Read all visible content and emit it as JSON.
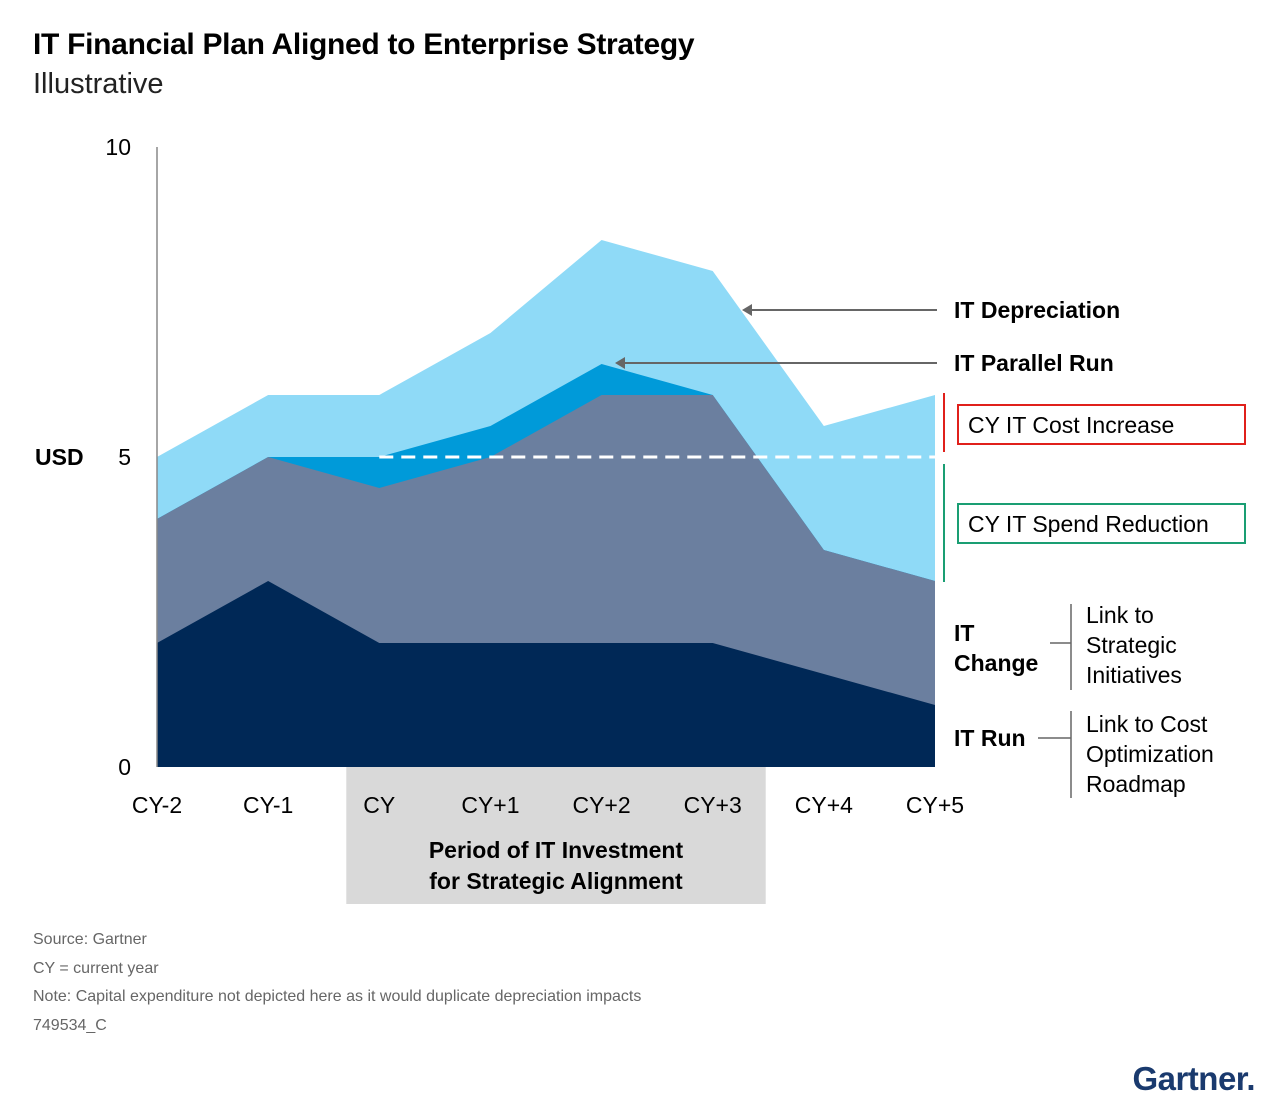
{
  "header": {
    "title": "IT Financial Plan Aligned to Enterprise Strategy",
    "subtitle": "Illustrative"
  },
  "chart_data": {
    "type": "area",
    "stacked": false,
    "categories": [
      "CY-2",
      "CY-1",
      "CY",
      "CY+1",
      "CY+2",
      "CY+3",
      "CY+4",
      "CY+5"
    ],
    "ylabel": "USD",
    "ylim": [
      0,
      10
    ],
    "yticks": [
      "0",
      "5",
      "10"
    ],
    "series": [
      {
        "name": "IT Depreciation",
        "values": [
          5,
          6,
          6,
          7,
          8.5,
          8,
          5.5,
          6
        ],
        "color": "#8fdaf7"
      },
      {
        "name": "IT Parallel Run",
        "values": [
          4,
          5,
          5,
          5.5,
          6.5,
          6,
          3.5,
          3
        ],
        "color": "#009ad9"
      },
      {
        "name": "IT Change",
        "values": [
          4,
          5,
          4.5,
          5,
          6,
          6,
          3.5,
          3
        ],
        "color": "#6b7f9f"
      },
      {
        "name": "IT Run",
        "values": [
          2,
          3,
          2,
          2,
          2,
          2,
          1.5,
          1
        ],
        "color": "#002856"
      }
    ],
    "reference_line": {
      "value": 5,
      "from_category": "CY",
      "to_category": "CY+5",
      "style": "dashed",
      "color": "#ffffff"
    },
    "highlight_period": {
      "from_category": "CY",
      "to_category": "CY+3",
      "label_line1": "Period of IT Investment",
      "label_line2": "for Strategic Alignment",
      "color": "#d9d9d9"
    },
    "annotations": {
      "depreciation": "IT Depreciation",
      "parallel_run": "IT Parallel Run",
      "cost_increase": "CY IT Cost Increase",
      "spend_reduction": "CY IT Spend Reduction",
      "change_line1": "IT",
      "change_line2": "Change",
      "change_link": [
        "Link to",
        "Strategic",
        "Initiatives"
      ],
      "run": "IT Run",
      "run_link": [
        "Link to Cost",
        "Optimization",
        "Roadmap"
      ]
    },
    "colors": {
      "cost_increase_box": "#e0201b",
      "spend_reduction_box": "#1a9e73",
      "arrow": "#666666",
      "axis": "#888888"
    }
  },
  "footer": {
    "source": "Source: Gartner",
    "cy_note": "CY = current year",
    "note": "Note: Capital expenditure not depicted here as it would duplicate depreciation impacts",
    "id": "749534_C",
    "logo": "Gartner."
  }
}
